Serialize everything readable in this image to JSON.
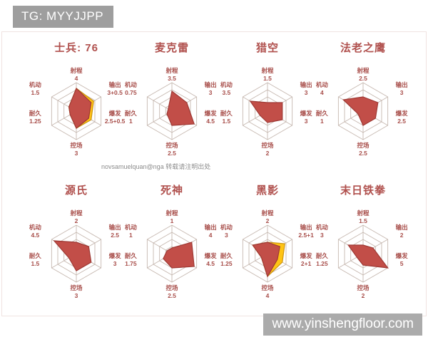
{
  "header": {
    "tag_label": "TG: MYYJJPP"
  },
  "footer": {
    "url_label": "www.yinshengfloor.com"
  },
  "watermark": {
    "credit": "novsamuelquan@nga 转载请注明出处"
  },
  "colors": {
    "accent_red": "#b0504d",
    "polygon_fill": "#c24e48",
    "polygon_stroke": "#9e3934",
    "bonus_fill": "#ffc414",
    "bonus_stroke": "#cc9412",
    "grid_line": "#c6b8b0",
    "box_gray": "#9e9e9e",
    "footer_gray": "#ababab"
  },
  "chart_data": [
    {
      "type": "radar",
      "title": "士兵: 76",
      "max": 5,
      "rings": 4,
      "axes": [
        {
          "label": "射程",
          "display": "4",
          "value": 4,
          "bonus": 0
        },
        {
          "label": "输出",
          "display": "3+0.5",
          "value": 3,
          "bonus": 0.5
        },
        {
          "label": "爆发",
          "display": "2.5+0.5",
          "value": 2.5,
          "bonus": 0.5
        },
        {
          "label": "控场",
          "display": "3",
          "value": 3,
          "bonus": 0
        },
        {
          "label": "耐久",
          "display": "1.25",
          "value": 1.25,
          "bonus": 0
        },
        {
          "label": "机动",
          "display": "1.5",
          "value": 1.5,
          "bonus": 0
        }
      ]
    },
    {
      "type": "radar",
      "title": "麦克雷",
      "max": 5,
      "rings": 4,
      "axes": [
        {
          "label": "射程",
          "display": "3.5",
          "value": 3.5,
          "bonus": 0
        },
        {
          "label": "输出",
          "display": "3",
          "value": 3,
          "bonus": 0
        },
        {
          "label": "爆发",
          "display": "4.5",
          "value": 4.5,
          "bonus": 0
        },
        {
          "label": "控场",
          "display": "2.5",
          "value": 2.5,
          "bonus": 0
        },
        {
          "label": "耐久",
          "display": "1",
          "value": 1,
          "bonus": 0
        },
        {
          "label": "机动",
          "display": "0.75",
          "value": 0.75,
          "bonus": 0
        }
      ]
    },
    {
      "type": "radar",
      "title": "猎空",
      "max": 5,
      "rings": 4,
      "axes": [
        {
          "label": "射程",
          "display": "1.5",
          "value": 1.5,
          "bonus": 0
        },
        {
          "label": "输出",
          "display": "3",
          "value": 3,
          "bonus": 0
        },
        {
          "label": "爆发",
          "display": "3",
          "value": 3,
          "bonus": 0
        },
        {
          "label": "控场",
          "display": "2",
          "value": 2,
          "bonus": 0
        },
        {
          "label": "耐久",
          "display": "1.5",
          "value": 1.5,
          "bonus": 0
        },
        {
          "label": "机动",
          "display": "3.5",
          "value": 3.5,
          "bonus": 0
        }
      ]
    },
    {
      "type": "radar",
      "title": "法老之鹰",
      "max": 5,
      "rings": 4,
      "axes": [
        {
          "label": "射程",
          "display": "2.5",
          "value": 2.5,
          "bonus": 0
        },
        {
          "label": "输出",
          "display": "3",
          "value": 3,
          "bonus": 0
        },
        {
          "label": "爆发",
          "display": "2.5",
          "value": 2.5,
          "bonus": 0
        },
        {
          "label": "控场",
          "display": "2.5",
          "value": 2.5,
          "bonus": 0
        },
        {
          "label": "耐久",
          "display": "1",
          "value": 1,
          "bonus": 0
        },
        {
          "label": "机动",
          "display": "4",
          "value": 4,
          "bonus": 0
        }
      ]
    },
    {
      "type": "radar",
      "title": "源氏",
      "max": 5,
      "rings": 4,
      "axes": [
        {
          "label": "射程",
          "display": "2",
          "value": 2,
          "bonus": 0
        },
        {
          "label": "输出",
          "display": "2.5",
          "value": 2.5,
          "bonus": 0
        },
        {
          "label": "爆发",
          "display": "3",
          "value": 3,
          "bonus": 0
        },
        {
          "label": "控场",
          "display": "3",
          "value": 3,
          "bonus": 0
        },
        {
          "label": "耐久",
          "display": "1.5",
          "value": 1.5,
          "bonus": 0
        },
        {
          "label": "机动",
          "display": "4.5",
          "value": 4.5,
          "bonus": 0
        }
      ]
    },
    {
      "type": "radar",
      "title": "死神",
      "max": 5,
      "rings": 4,
      "axes": [
        {
          "label": "射程",
          "display": "1",
          "value": 1,
          "bonus": 0
        },
        {
          "label": "输出",
          "display": "4",
          "value": 4,
          "bonus": 0
        },
        {
          "label": "爆发",
          "display": "4.5",
          "value": 4.5,
          "bonus": 0
        },
        {
          "label": "控场",
          "display": "2.5",
          "value": 2.5,
          "bonus": 0
        },
        {
          "label": "耐久",
          "display": "1.75",
          "value": 1.75,
          "bonus": 0
        },
        {
          "label": "机动",
          "display": "1",
          "value": 1,
          "bonus": 0
        }
      ]
    },
    {
      "type": "radar",
      "title": "黑影",
      "max": 5,
      "rings": 4,
      "axes": [
        {
          "label": "射程",
          "display": "2",
          "value": 2,
          "bonus": 0
        },
        {
          "label": "输出",
          "display": "2.5+1",
          "value": 2.5,
          "bonus": 1
        },
        {
          "label": "爆发",
          "display": "2+1",
          "value": 2,
          "bonus": 1
        },
        {
          "label": "控场",
          "display": "4",
          "value": 4,
          "bonus": 0
        },
        {
          "label": "耐久",
          "display": "1.25",
          "value": 1.25,
          "bonus": 0
        },
        {
          "label": "机动",
          "display": "3",
          "value": 3,
          "bonus": 0
        }
      ]
    },
    {
      "type": "radar",
      "title": "末日铁拳",
      "max": 5,
      "rings": 4,
      "axes": [
        {
          "label": "射程",
          "display": "1.5",
          "value": 1.5,
          "bonus": 0
        },
        {
          "label": "输出",
          "display": "2",
          "value": 2,
          "bonus": 0
        },
        {
          "label": "爆发",
          "display": "5",
          "value": 5,
          "bonus": 0
        },
        {
          "label": "控场",
          "display": "2",
          "value": 2,
          "bonus": 0
        },
        {
          "label": "耐久",
          "display": "1.25",
          "value": 1.25,
          "bonus": 0
        },
        {
          "label": "机动",
          "display": "3",
          "value": 3,
          "bonus": 0
        }
      ]
    }
  ]
}
